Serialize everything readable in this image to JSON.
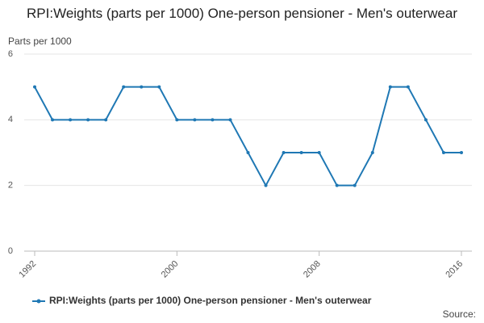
{
  "chart_data": {
    "type": "line",
    "title": "RPI:Weights (parts per 1000) One-person pensioner - Men's outerwear",
    "y_label": "Parts per 1000",
    "source_label": "Source:",
    "x": [
      1992,
      1993,
      1994,
      1995,
      1996,
      1997,
      1998,
      1999,
      2000,
      2001,
      2002,
      2003,
      2004,
      2005,
      2006,
      2007,
      2008,
      2009,
      2010,
      2011,
      2012,
      2013,
      2014,
      2015,
      2016
    ],
    "series": [
      {
        "name": "RPI:Weights (parts per 1000) One-person pensioner - Men's outerwear",
        "color": "#1f78b4",
        "values": [
          5,
          4,
          4,
          4,
          4,
          5,
          5,
          5,
          4,
          4,
          4,
          4,
          3,
          2,
          3,
          3,
          3,
          2,
          2,
          3,
          5,
          5,
          4,
          3,
          3
        ]
      }
    ],
    "xlim": [
      1992,
      2016
    ],
    "xticks": [
      1992,
      2000,
      2008,
      2016
    ],
    "ylim": [
      0,
      6
    ],
    "yticks": [
      0,
      2,
      4,
      6
    ],
    "grid": true
  }
}
